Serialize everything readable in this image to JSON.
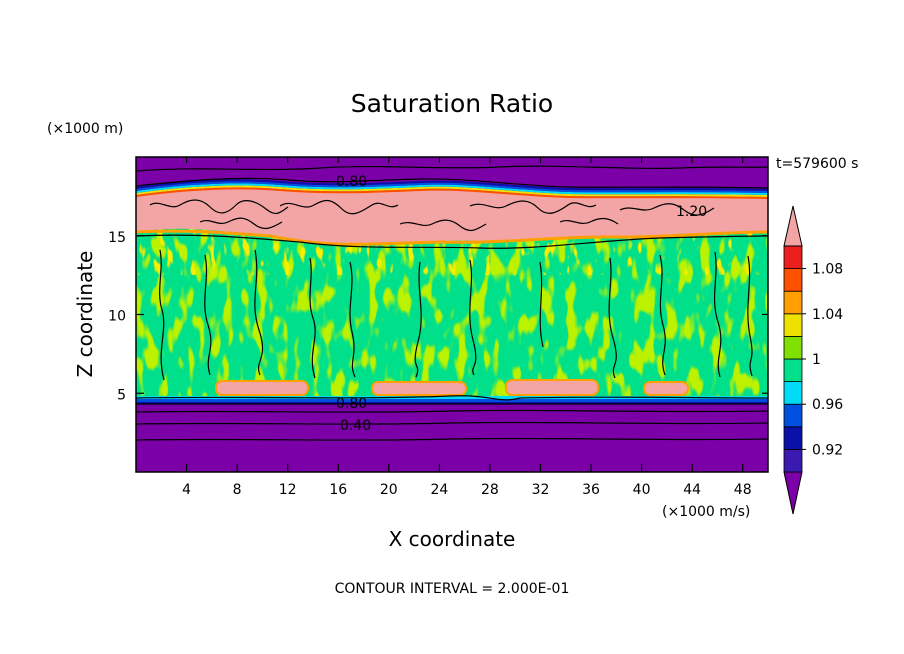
{
  "chart_data": {
    "type": "heatmap",
    "title": "Saturation Ratio",
    "xlabel": "X coordinate",
    "ylabel": "Z coordinate",
    "x_unit": "(×1000 m/s)",
    "y_unit": "(×1000 m)",
    "time_label": "t=579600 s",
    "footer": "CONTOUR INTERVAL = 2.000E-01",
    "xlim": [
      0,
      50
    ],
    "ylim": [
      0,
      20
    ],
    "x_ticks": [
      4,
      8,
      12,
      16,
      20,
      24,
      28,
      32,
      36,
      40,
      44,
      48
    ],
    "x_tick_labels": [
      "4",
      "8",
      "12",
      "16",
      "20",
      "24",
      "28",
      "32",
      "36",
      "40",
      "44",
      "48"
    ],
    "y_ticks": [
      5,
      10,
      15
    ],
    "y_tick_labels": [
      "5",
      "10",
      "15"
    ],
    "contour_labels": [
      {
        "text": "0.80",
        "x": 17.4,
        "z": 18.4
      },
      {
        "text": "1.20",
        "x": 44.8,
        "z": 16.2
      },
      {
        "text": "0.80",
        "x": 17.2,
        "z": 4.5
      },
      {
        "text": "0.40",
        "x": 17.6,
        "z": 3.2
      }
    ],
    "layers": [
      {
        "z_range": [
          0,
          4.5
        ],
        "value": "below 0.90"
      },
      {
        "z_range": [
          4.5,
          5.0
        ],
        "value": "0.90-1.00"
      },
      {
        "z_range": [
          5.0,
          15.5
        ],
        "value": "0.98-1.02"
      },
      {
        "z_range": [
          15.5,
          17.8
        ],
        "value": "above 1.10"
      },
      {
        "z_range": [
          17.8,
          20
        ],
        "value": "below 0.90"
      }
    ],
    "colorbar": {
      "levels": [
        0.9,
        0.92,
        0.94,
        0.96,
        0.98,
        1.0,
        1.02,
        1.04,
        1.06,
        1.08,
        1.1
      ],
      "tick_labels": [
        "0.92",
        "0.96",
        "1",
        "1.04",
        "1.08"
      ],
      "tick_values": [
        0.92,
        0.96,
        1.0,
        1.04,
        1.08
      ],
      "colors": [
        "#7b00a8",
        "#3a1ab0",
        "#0a10a8",
        "#0050e0",
        "#00dcf5",
        "#00e08a",
        "#80e000",
        "#f0e000",
        "#ffa000",
        "#ff5000",
        "#ec1e1e",
        "#f3a5a5"
      ]
    }
  }
}
